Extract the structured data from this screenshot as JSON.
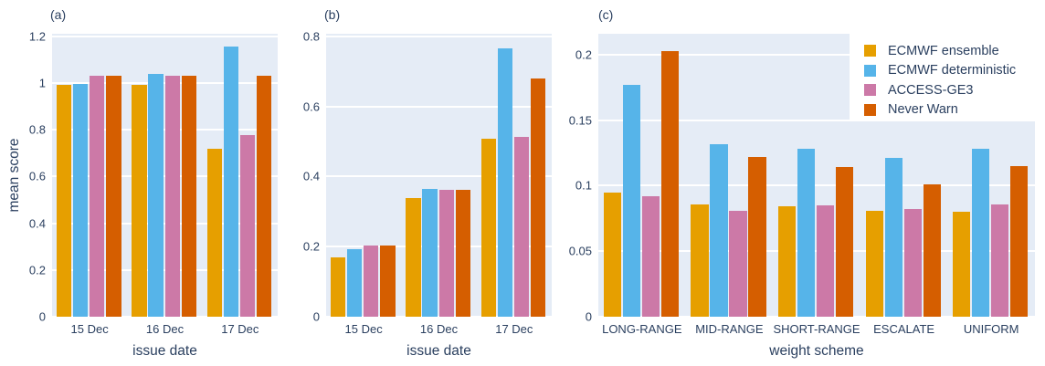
{
  "colors": {
    "plot_bg": "#E5ECF6",
    "grid": "#FFFFFF",
    "text": "#2A3F5F",
    "page_bg": "#FFFFFF",
    "series": [
      "#E69F00",
      "#56B4E9",
      "#CC79A7",
      "#D55E00"
    ]
  },
  "legend": {
    "items": [
      {
        "label": "ECMWF ensemble",
        "color": "#E69F00"
      },
      {
        "label": "ECMWF deterministic",
        "color": "#56B4E9"
      },
      {
        "label": "ACCESS-GE3",
        "color": "#CC79A7"
      },
      {
        "label": "Never Warn",
        "color": "#D55E00"
      }
    ],
    "position": "top-right-inside-panel-c"
  },
  "chart_data": [
    {
      "type": "bar",
      "panel_label": "(a)",
      "title": "",
      "xlabel": "issue date",
      "ylabel": "mean score",
      "categories": [
        "15 Dec",
        "16 Dec",
        "17 Dec"
      ],
      "series": [
        {
          "name": "ECMWF ensemble",
          "values": [
            0.99,
            0.99,
            0.72
          ]
        },
        {
          "name": "ECMWF deterministic",
          "values": [
            0.995,
            1.04,
            1.155
          ]
        },
        {
          "name": "ACCESS-GE3",
          "values": [
            1.03,
            1.03,
            0.775
          ]
        },
        {
          "name": "Never Warn",
          "values": [
            1.03,
            1.03,
            1.03
          ]
        }
      ],
      "ylim": [
        0,
        1.21
      ],
      "yticks": [
        0,
        0.2,
        0.4,
        0.6,
        0.8,
        1,
        1.2
      ],
      "ytick_labels": [
        "0",
        "0.2",
        "0.4",
        "0.6",
        "0.8",
        "1",
        "1.2"
      ],
      "grid": true,
      "legend_shown": false
    },
    {
      "type": "bar",
      "panel_label": "(b)",
      "title": "",
      "xlabel": "issue date",
      "ylabel": "",
      "categories": [
        "15 Dec",
        "16 Dec",
        "17 Dec"
      ],
      "series": [
        {
          "name": "ECMWF ensemble",
          "values": [
            0.17,
            0.338,
            0.508
          ]
        },
        {
          "name": "ECMWF deterministic",
          "values": [
            0.192,
            0.365,
            0.765
          ]
        },
        {
          "name": "ACCESS-GE3",
          "values": [
            0.203,
            0.362,
            0.512
          ]
        },
        {
          "name": "Never Warn",
          "values": [
            0.203,
            0.362,
            0.68
          ]
        }
      ],
      "ylim": [
        0,
        0.807
      ],
      "yticks": [
        0,
        0.2,
        0.4,
        0.6,
        0.8
      ],
      "ytick_labels": [
        "0",
        "0.2",
        "0.4",
        "0.6",
        "0.8"
      ],
      "grid": true,
      "legend_shown": false
    },
    {
      "type": "bar",
      "panel_label": "(c)",
      "title": "",
      "xlabel": "weight scheme",
      "ylabel": "",
      "categories": [
        "LONG-RANGE",
        "MID-RANGE",
        "SHORT-RANGE",
        "ESCALATE",
        "UNIFORM"
      ],
      "series": [
        {
          "name": "ECMWF ensemble",
          "values": [
            0.095,
            0.086,
            0.084,
            0.081,
            0.08
          ]
        },
        {
          "name": "ECMWF deterministic",
          "values": [
            0.177,
            0.132,
            0.128,
            0.121,
            0.128
          ]
        },
        {
          "name": "ACCESS-GE3",
          "values": [
            0.092,
            0.081,
            0.085,
            0.082,
            0.086
          ]
        },
        {
          "name": "Never Warn",
          "values": [
            0.203,
            0.122,
            0.114,
            0.101,
            0.115
          ]
        }
      ],
      "ylim": [
        0,
        0.216
      ],
      "yticks": [
        0,
        0.05,
        0.1,
        0.15,
        0.2
      ],
      "ytick_labels": [
        "0",
        "0.05",
        "0.1",
        "0.15",
        "0.2"
      ],
      "grid": true,
      "legend_shown": true
    }
  ]
}
